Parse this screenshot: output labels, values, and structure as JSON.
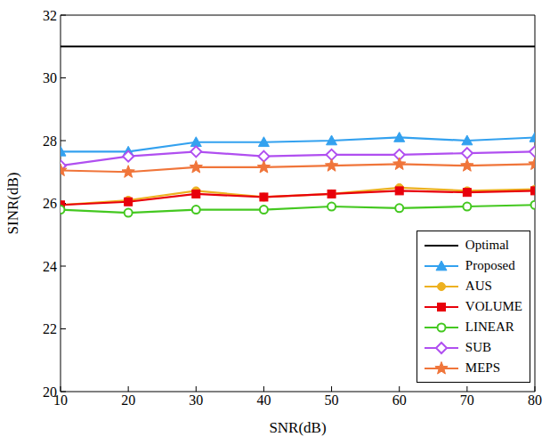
{
  "chart_data": {
    "type": "line",
    "x_label": "SNR(dB)",
    "y_label": "SINR(dB)",
    "x": [
      10,
      20,
      30,
      40,
      50,
      60,
      70,
      80
    ],
    "xlim": [
      10,
      80
    ],
    "xticks": [
      10,
      20,
      30,
      40,
      50,
      60,
      70,
      80
    ],
    "ylim": [
      20,
      32
    ],
    "yticks": [
      20,
      22,
      24,
      26,
      28,
      30,
      32
    ],
    "grid": false,
    "legend": "lower right",
    "series": [
      {
        "name": "Optimal",
        "color": "#000000",
        "marker": "none",
        "values": [
          31,
          31,
          31,
          31,
          31,
          31,
          31,
          31
        ]
      },
      {
        "name": "Proposed",
        "color": "#33a1ef",
        "marker": "triangle",
        "values": [
          27.65,
          27.65,
          27.95,
          27.95,
          28.0,
          28.1,
          28.0,
          28.1
        ]
      },
      {
        "name": "AUS",
        "color": "#edb120",
        "marker": "circle",
        "values": [
          25.95,
          26.1,
          26.4,
          26.2,
          26.3,
          26.5,
          26.4,
          26.45
        ]
      },
      {
        "name": "VOLUME",
        "color": "#e8000b",
        "marker": "square",
        "values": [
          25.95,
          26.05,
          26.3,
          26.2,
          26.3,
          26.4,
          26.35,
          26.4
        ]
      },
      {
        "name": "LINEAR",
        "color": "#44c820",
        "marker": "open-circle",
        "values": [
          25.8,
          25.7,
          25.8,
          25.8,
          25.9,
          25.85,
          25.9,
          25.95
        ]
      },
      {
        "name": "SUB",
        "color": "#b04ff0",
        "marker": "open-diamond",
        "values": [
          27.2,
          27.5,
          27.65,
          27.5,
          27.55,
          27.55,
          27.6,
          27.65
        ]
      },
      {
        "name": "MEPS",
        "color": "#f0753a",
        "marker": "star",
        "values": [
          27.05,
          27.0,
          27.15,
          27.15,
          27.2,
          27.25,
          27.2,
          27.25
        ]
      }
    ]
  }
}
